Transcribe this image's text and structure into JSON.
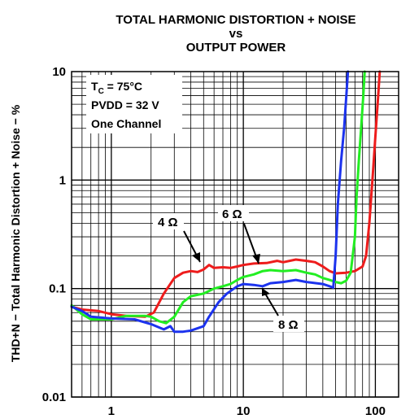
{
  "chart_data": {
    "type": "line",
    "title_lines": [
      "TOTAL HARMONIC DISTORTION + NOISE",
      "vs",
      "OUTPUT POWER"
    ],
    "ylabel": "THD+N − Total Harmonic Distortion + Noise − %",
    "xlabel": "",
    "x_scale": "log",
    "y_scale": "log",
    "xlim": [
      0.5,
      150
    ],
    "ylim": [
      0.01,
      10
    ],
    "x_ticks": [
      {
        "value": 1,
        "label": "1"
      },
      {
        "value": 10,
        "label": "10"
      },
      {
        "value": 100,
        "label": "100"
      }
    ],
    "y_ticks": [
      {
        "value": 10,
        "label": "10"
      },
      {
        "value": 1,
        "label": "1"
      },
      {
        "value": 0.1,
        "label": "0.1"
      },
      {
        "value": 0.01,
        "label": "0.01"
      }
    ],
    "grid": true,
    "conditions": {
      "tc_main": "T",
      "tc_sub": "C",
      "tc_value": " = 75°C",
      "pvdd": "PVDD = 32 V",
      "channel": "One Channel"
    },
    "series": [
      {
        "name": "4 Ω",
        "color": "#ee1c1c",
        "points": [
          [
            0.5,
            0.068
          ],
          [
            0.6,
            0.064
          ],
          [
            0.8,
            0.062
          ],
          [
            1.0,
            0.058
          ],
          [
            1.3,
            0.056
          ],
          [
            1.8,
            0.055
          ],
          [
            2.1,
            0.06
          ],
          [
            2.5,
            0.09
          ],
          [
            3.0,
            0.125
          ],
          [
            3.5,
            0.14
          ],
          [
            4.0,
            0.145
          ],
          [
            4.5,
            0.142
          ],
          [
            5.0,
            0.15
          ],
          [
            5.5,
            0.165
          ],
          [
            6.0,
            0.155
          ],
          [
            7.0,
            0.157
          ],
          [
            8.0,
            0.155
          ],
          [
            9.0,
            0.16
          ],
          [
            10.0,
            0.165
          ],
          [
            12.0,
            0.17
          ],
          [
            15.0,
            0.172
          ],
          [
            18.0,
            0.18
          ],
          [
            20.0,
            0.175
          ],
          [
            25.0,
            0.185
          ],
          [
            30.0,
            0.18
          ],
          [
            35.0,
            0.175
          ],
          [
            40.0,
            0.16
          ],
          [
            45.0,
            0.145
          ],
          [
            50.0,
            0.138
          ],
          [
            60.0,
            0.14
          ],
          [
            70.0,
            0.145
          ],
          [
            80.0,
            0.16
          ],
          [
            85.0,
            0.2
          ],
          [
            90.0,
            0.4
          ],
          [
            95.0,
            1.0
          ],
          [
            100.0,
            2.5
          ],
          [
            105.0,
            6.0
          ],
          [
            108.0,
            10.0
          ]
        ]
      },
      {
        "name": "6 Ω",
        "color": "#22ee22",
        "points": [
          [
            0.5,
            0.07
          ],
          [
            0.6,
            0.058
          ],
          [
            0.7,
            0.052
          ],
          [
            1.0,
            0.052
          ],
          [
            1.3,
            0.056
          ],
          [
            1.8,
            0.056
          ],
          [
            2.0,
            0.055
          ],
          [
            2.3,
            0.05
          ],
          [
            2.6,
            0.048
          ],
          [
            3.0,
            0.055
          ],
          [
            3.5,
            0.075
          ],
          [
            4.0,
            0.085
          ],
          [
            5.0,
            0.09
          ],
          [
            6.0,
            0.1
          ],
          [
            7.0,
            0.105
          ],
          [
            8.0,
            0.11
          ],
          [
            9.0,
            0.12
          ],
          [
            10.0,
            0.128
          ],
          [
            12.0,
            0.135
          ],
          [
            14.0,
            0.145
          ],
          [
            16.0,
            0.148
          ],
          [
            20.0,
            0.145
          ],
          [
            25.0,
            0.148
          ],
          [
            30.0,
            0.14
          ],
          [
            35.0,
            0.135
          ],
          [
            40.0,
            0.125
          ],
          [
            45.0,
            0.12
          ],
          [
            50.0,
            0.115
          ],
          [
            55.0,
            0.112
          ],
          [
            60.0,
            0.118
          ],
          [
            65.0,
            0.14
          ],
          [
            70.0,
            0.3
          ],
          [
            72.0,
            0.7
          ],
          [
            75.0,
            1.5
          ],
          [
            78.0,
            3.0
          ],
          [
            81.0,
            6.0
          ],
          [
            83.0,
            10.0
          ]
        ]
      },
      {
        "name": "8 Ω",
        "color": "#1c33ee",
        "points": [
          [
            0.5,
            0.068
          ],
          [
            0.6,
            0.062
          ],
          [
            0.7,
            0.055
          ],
          [
            1.0,
            0.053
          ],
          [
            1.5,
            0.052
          ],
          [
            2.0,
            0.047
          ],
          [
            2.5,
            0.042
          ],
          [
            2.8,
            0.045
          ],
          [
            3.0,
            0.04
          ],
          [
            3.5,
            0.04
          ],
          [
            4.0,
            0.041
          ],
          [
            5.0,
            0.045
          ],
          [
            5.5,
            0.055
          ],
          [
            6.5,
            0.075
          ],
          [
            7.5,
            0.09
          ],
          [
            9.0,
            0.105
          ],
          [
            10.0,
            0.11
          ],
          [
            12.0,
            0.108
          ],
          [
            14.0,
            0.105
          ],
          [
            16.0,
            0.112
          ],
          [
            20.0,
            0.115
          ],
          [
            25.0,
            0.12
          ],
          [
            30.0,
            0.115
          ],
          [
            40.0,
            0.11
          ],
          [
            45.0,
            0.105
          ],
          [
            48.0,
            0.102
          ],
          [
            50.0,
            0.2
          ],
          [
            52.0,
            0.6
          ],
          [
            55.0,
            1.5
          ],
          [
            58.0,
            3.0
          ],
          [
            60.0,
            5.5
          ],
          [
            62.0,
            10.0
          ]
        ]
      }
    ],
    "annotations": [
      {
        "text": "4 Ω",
        "series": "4 Ω"
      },
      {
        "text": "6 Ω",
        "series": "6 Ω"
      },
      {
        "text": "8 Ω",
        "series": "8 Ω"
      }
    ]
  }
}
